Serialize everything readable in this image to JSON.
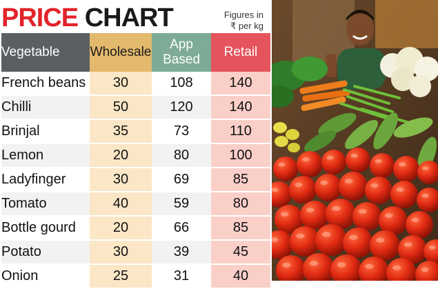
{
  "title": {
    "word1": "PRICE",
    "word2": "CHART"
  },
  "note": {
    "line1": "Figures in",
    "line2": "₹ per kg"
  },
  "photo_icon": "vegetable-stall-photo",
  "chart_data": {
    "type": "table",
    "title": "PRICE CHART",
    "unit_note": "Figures in ₹ per kg",
    "columns": [
      "Vegetable",
      "Wholesale",
      "App Based",
      "Retail"
    ],
    "header_colors": [
      "#5a5f61",
      "#e3b96d",
      "#7dab96",
      "#e5535c"
    ],
    "rows": [
      {
        "vegetable": "French beans",
        "wholesale": 30,
        "app": 108,
        "retail": 140
      },
      {
        "vegetable": "Chilli",
        "wholesale": 50,
        "app": 120,
        "retail": 140
      },
      {
        "vegetable": "Brinjal",
        "wholesale": 35,
        "app": 73,
        "retail": 110
      },
      {
        "vegetable": "Lemon",
        "wholesale": 20,
        "app": 80,
        "retail": 100
      },
      {
        "vegetable": "Ladyfinger",
        "wholesale": 30,
        "app": 69,
        "retail": 85
      },
      {
        "vegetable": "Tomato",
        "wholesale": 40,
        "app": 59,
        "retail": 80
      },
      {
        "vegetable": "Bottle gourd",
        "wholesale": 20,
        "app": 66,
        "retail": 85
      },
      {
        "vegetable": "Potato",
        "wholesale": 30,
        "app": 39,
        "retail": 45
      },
      {
        "vegetable": "Onion",
        "wholesale": 25,
        "app": 31,
        "retail": 40
      }
    ]
  }
}
